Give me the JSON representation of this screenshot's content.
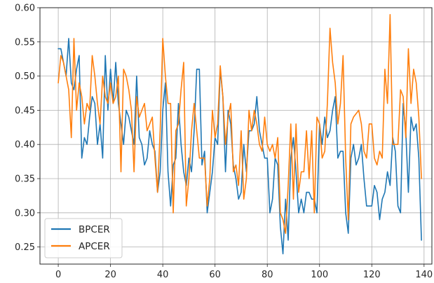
{
  "chart_data": {
    "type": "line",
    "title": "",
    "xlabel": "",
    "ylabel": "",
    "xlim": [
      -7,
      143
    ],
    "ylim": [
      0.225,
      0.6
    ],
    "xticks": [
      0,
      20,
      40,
      60,
      80,
      100,
      120,
      140
    ],
    "yticks": [
      0.25,
      0.3,
      0.35,
      0.4,
      0.45,
      0.5,
      0.55,
      0.6
    ],
    "grid": true,
    "legend_position": "lower-left",
    "x": [
      0,
      1,
      2,
      3,
      4,
      5,
      6,
      7,
      8,
      9,
      10,
      11,
      12,
      13,
      14,
      15,
      16,
      17,
      18,
      19,
      20,
      21,
      22,
      23,
      24,
      25,
      26,
      27,
      28,
      29,
      30,
      31,
      32,
      33,
      34,
      35,
      36,
      37,
      38,
      39,
      40,
      41,
      42,
      43,
      44,
      45,
      46,
      47,
      48,
      49,
      50,
      51,
      52,
      53,
      54,
      55,
      56,
      57,
      58,
      59,
      60,
      61,
      62,
      63,
      64,
      65,
      66,
      67,
      68,
      69,
      70,
      71,
      72,
      73,
      74,
      75,
      76,
      77,
      78,
      79,
      80,
      81,
      82,
      83,
      84,
      85,
      86,
      87,
      88,
      89,
      90,
      91,
      92,
      93,
      94,
      95,
      96,
      97,
      98,
      99,
      100,
      101,
      102,
      103,
      104,
      105,
      106,
      107,
      108,
      109,
      110,
      111,
      112,
      113,
      114,
      115,
      116,
      117,
      118,
      119,
      120,
      121,
      122,
      123,
      124,
      125,
      126,
      127,
      128,
      129,
      130,
      131,
      132,
      133,
      134,
      135,
      136,
      137,
      138,
      139
    ],
    "series": [
      {
        "name": "BPCER",
        "color": "#1f77b4",
        "values": [
          0.54,
          0.54,
          0.52,
          0.5,
          0.555,
          0.49,
          0.48,
          0.51,
          0.53,
          0.38,
          0.41,
          0.4,
          0.44,
          0.47,
          0.46,
          0.4,
          0.43,
          0.38,
          0.53,
          0.45,
          0.51,
          0.46,
          0.52,
          0.46,
          0.43,
          0.4,
          0.45,
          0.44,
          0.42,
          0.4,
          0.5,
          0.41,
          0.4,
          0.37,
          0.38,
          0.42,
          0.4,
          0.39,
          0.33,
          0.36,
          0.45,
          0.49,
          0.36,
          0.31,
          0.37,
          0.38,
          0.46,
          0.4,
          0.36,
          0.34,
          0.38,
          0.36,
          0.42,
          0.51,
          0.51,
          0.37,
          0.39,
          0.3,
          0.33,
          0.36,
          0.41,
          0.4,
          0.51,
          0.47,
          0.36,
          0.45,
          0.43,
          0.37,
          0.35,
          0.32,
          0.33,
          0.4,
          0.36,
          0.42,
          0.42,
          0.43,
          0.47,
          0.42,
          0.4,
          0.38,
          0.38,
          0.3,
          0.32,
          0.38,
          0.37,
          0.28,
          0.24,
          0.32,
          0.26,
          0.38,
          0.41,
          0.36,
          0.3,
          0.32,
          0.3,
          0.33,
          0.33,
          0.32,
          0.32,
          0.3,
          0.43,
          0.4,
          0.44,
          0.41,
          0.42,
          0.45,
          0.47,
          0.38,
          0.39,
          0.39,
          0.3,
          0.27,
          0.38,
          0.4,
          0.37,
          0.38,
          0.4,
          0.35,
          0.31,
          0.31,
          0.31,
          0.34,
          0.33,
          0.29,
          0.32,
          0.33,
          0.36,
          0.34,
          0.41,
          0.39,
          0.31,
          0.3,
          0.46,
          0.42,
          0.33,
          0.44,
          0.42,
          0.43,
          0.38,
          0.26
        ]
      },
      {
        "name": "APCER",
        "color": "#ff7f0e",
        "values": [
          0.49,
          0.53,
          0.52,
          0.5,
          0.48,
          0.41,
          0.555,
          0.45,
          0.49,
          0.47,
          0.43,
          0.46,
          0.45,
          0.53,
          0.5,
          0.46,
          0.43,
          0.5,
          0.47,
          0.46,
          0.49,
          0.46,
          0.47,
          0.5,
          0.36,
          0.51,
          0.5,
          0.48,
          0.45,
          0.36,
          0.47,
          0.44,
          0.45,
          0.46,
          0.42,
          0.43,
          0.44,
          0.38,
          0.33,
          0.42,
          0.555,
          0.5,
          0.46,
          0.46,
          0.3,
          0.42,
          0.43,
          0.48,
          0.52,
          0.31,
          0.35,
          0.42,
          0.46,
          0.42,
          0.38,
          0.38,
          0.38,
          0.31,
          0.35,
          0.45,
          0.41,
          0.43,
          0.515,
          0.47,
          0.4,
          0.44,
          0.46,
          0.36,
          0.37,
          0.34,
          0.42,
          0.32,
          0.35,
          0.45,
          0.42,
          0.45,
          0.43,
          0.4,
          0.39,
          0.44,
          0.4,
          0.39,
          0.4,
          0.38,
          0.41,
          0.3,
          0.29,
          0.27,
          0.34,
          0.43,
          0.32,
          0.43,
          0.33,
          0.36,
          0.36,
          0.42,
          0.35,
          0.42,
          0.3,
          0.44,
          0.43,
          0.38,
          0.39,
          0.46,
          0.57,
          0.52,
          0.49,
          0.43,
          0.46,
          0.53,
          0.38,
          0.29,
          0.43,
          0.44,
          0.445,
          0.45,
          0.43,
          0.39,
          0.38,
          0.43,
          0.43,
          0.38,
          0.37,
          0.39,
          0.38,
          0.51,
          0.46,
          0.59,
          0.4,
          0.4,
          0.4,
          0.48,
          0.47,
          0.41,
          0.54,
          0.46,
          0.51,
          0.49,
          0.44,
          0.35
        ]
      }
    ]
  }
}
